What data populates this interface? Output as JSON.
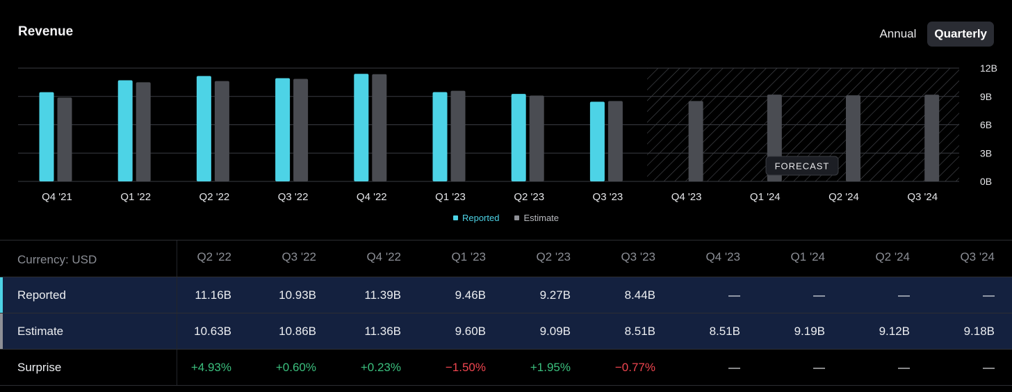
{
  "header": {
    "title": "Revenue"
  },
  "toggle": {
    "annual": "Annual",
    "quarterly": "Quarterly",
    "selected": "Quarterly"
  },
  "chart_data": {
    "type": "bar",
    "title": "Revenue",
    "categories": [
      "Q4 '21",
      "Q1 '22",
      "Q2 '22",
      "Q3 '22",
      "Q4 '22",
      "Q1 '23",
      "Q2 '23",
      "Q3 '23",
      "Q4 '23",
      "Q1 '24",
      "Q2 '24",
      "Q3 '24"
    ],
    "series": [
      {
        "name": "Reported",
        "color": "#4dd3e6",
        "values": [
          9.45,
          10.71,
          11.16,
          10.93,
          11.39,
          9.46,
          9.27,
          8.44,
          null,
          null,
          null,
          null
        ]
      },
      {
        "name": "Estimate",
        "color": "#4a4c52",
        "values": [
          8.88,
          10.5,
          10.63,
          10.86,
          11.36,
          9.6,
          9.09,
          8.51,
          8.51,
          9.19,
          9.12,
          9.18
        ]
      }
    ],
    "ylim": [
      0,
      12
    ],
    "yticks": [
      "0B",
      "3B",
      "6B",
      "9B",
      "12B"
    ],
    "ytick_values": [
      0,
      3,
      6,
      9,
      12
    ],
    "forecast_label": "FORECAST",
    "forecast_start_index": 8,
    "legend": [
      "Reported",
      "Estimate"
    ],
    "legend_position": "bottom-center"
  },
  "table": {
    "currency_label": "Currency: USD",
    "columns": [
      "Q2 '22",
      "Q3 '22",
      "Q4 '22",
      "Q1 '23",
      "Q2 '23",
      "Q3 '23",
      "Q4 '23",
      "Q1 '24",
      "Q2 '24",
      "Q3 '24"
    ],
    "rows": [
      {
        "label": "Reported",
        "marker": "#4dd3e6",
        "values": [
          "11.16B",
          "10.93B",
          "11.39B",
          "9.46B",
          "9.27B",
          "8.44B",
          "—",
          "—",
          "—",
          "—"
        ]
      },
      {
        "label": "Estimate",
        "marker": "#8e9096",
        "values": [
          "10.63B",
          "10.86B",
          "11.36B",
          "9.60B",
          "9.09B",
          "8.51B",
          "8.51B",
          "9.19B",
          "9.12B",
          "9.18B"
        ]
      },
      {
        "label": "Surprise",
        "values": [
          "+4.93%",
          "+0.60%",
          "+0.23%",
          "−1.50%",
          "+1.95%",
          "−0.77%",
          "—",
          "—",
          "—",
          "—"
        ]
      }
    ]
  }
}
